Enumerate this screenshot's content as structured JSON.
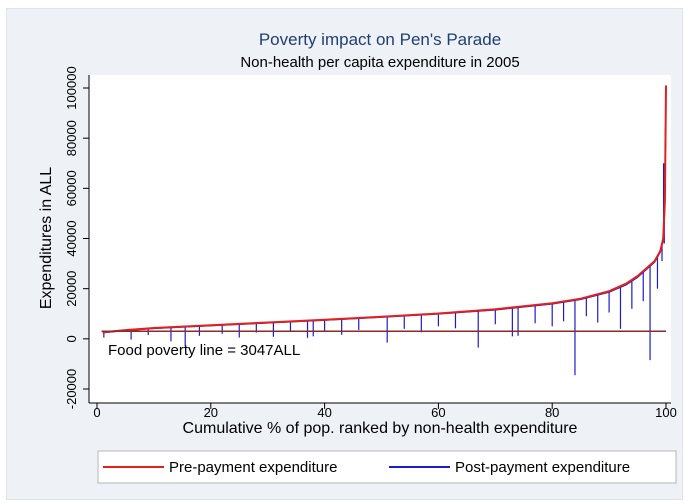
{
  "chart_data": {
    "type": "line",
    "title": "Poverty impact on Pen's Parade",
    "subtitle": "Non-health per capita expenditure in 2005",
    "xlabel": "Cumulative % of pop. ranked by non-health expenditure",
    "ylabel": "Expenditures in ALL",
    "xlim": [
      0,
      100
    ],
    "ylim": [
      -20000,
      100000
    ],
    "xticks": [
      0,
      20,
      40,
      60,
      80,
      100
    ],
    "yticks": [
      -20000,
      0,
      20000,
      40000,
      60000,
      80000,
      100000
    ],
    "xtick_labels": [
      "0",
      "20",
      "40",
      "60",
      "80",
      "100"
    ],
    "ytick_labels": [
      "-20000",
      "0",
      "20000",
      "40000",
      "60000",
      "80000",
      "100000"
    ],
    "grid": false,
    "legend_position": "bottom",
    "colors": {
      "pre_payment": "#e3201b",
      "post_payment": "#1c1ccc",
      "poverty_line": "#8b2a2a",
      "title": "#1f3f74"
    },
    "reference_line": {
      "y": 3047,
      "label": "Food poverty line = 3047ALL"
    },
    "series": [
      {
        "name": "Pre-payment expenditure",
        "x": [
          1,
          5,
          10,
          20,
          30,
          40,
          50,
          60,
          70,
          80,
          85,
          90,
          93,
          95,
          97,
          98,
          99,
          99.5,
          99.8,
          100
        ],
        "values": [
          2600,
          3500,
          4300,
          5400,
          6500,
          7600,
          8800,
          10100,
          11800,
          14200,
          16000,
          19000,
          22000,
          25000,
          29000,
          31000,
          35000,
          40000,
          55000,
          101000
        ]
      },
      {
        "name": "Post-payment expenditure",
        "x": [
          1,
          5,
          10,
          20,
          30,
          40,
          50,
          60,
          70,
          80,
          85,
          90,
          93,
          95,
          97,
          98,
          99,
          99.5,
          99.8,
          100
        ],
        "values": [
          2400,
          3300,
          4100,
          5200,
          6300,
          7400,
          8600,
          9900,
          11500,
          13900,
          15700,
          18600,
          21500,
          24500,
          28500,
          30500,
          34500,
          39000,
          54000,
          100000
        ],
        "dips": [
          {
            "x": 1.2,
            "y": 500
          },
          {
            "x": 6,
            "y": -300
          },
          {
            "x": 9,
            "y": 1500
          },
          {
            "x": 13,
            "y": -1000
          },
          {
            "x": 15.5,
            "y": -3000
          },
          {
            "x": 18,
            "y": 1200
          },
          {
            "x": 22,
            "y": 2000
          },
          {
            "x": 25,
            "y": 500
          },
          {
            "x": 28,
            "y": 2500
          },
          {
            "x": 31,
            "y": 800
          },
          {
            "x": 34,
            "y": 2800
          },
          {
            "x": 37,
            "y": 400
          },
          {
            "x": 38,
            "y": 1000
          },
          {
            "x": 40,
            "y": 3200
          },
          {
            "x": 43,
            "y": 1600
          },
          {
            "x": 46,
            "y": 3500
          },
          {
            "x": 51,
            "y": -1500
          },
          {
            "x": 54,
            "y": 4000
          },
          {
            "x": 57,
            "y": 2600
          },
          {
            "x": 60,
            "y": 5000
          },
          {
            "x": 63,
            "y": 4200
          },
          {
            "x": 67,
            "y": -3500
          },
          {
            "x": 70,
            "y": 5800
          },
          {
            "x": 73,
            "y": 1000
          },
          {
            "x": 74,
            "y": 1200
          },
          {
            "x": 77,
            "y": 6200
          },
          {
            "x": 80,
            "y": 5000
          },
          {
            "x": 82,
            "y": 7000
          },
          {
            "x": 84,
            "y": -14500
          },
          {
            "x": 86,
            "y": 9000
          },
          {
            "x": 88,
            "y": 6500
          },
          {
            "x": 90,
            "y": 10500
          },
          {
            "x": 92,
            "y": 4000
          },
          {
            "x": 94,
            "y": 12000
          },
          {
            "x": 96,
            "y": 15000
          },
          {
            "x": 97.2,
            "y": -8500
          },
          {
            "x": 98.5,
            "y": 20000
          },
          {
            "x": 99.3,
            "y": 31000
          },
          {
            "x": 99.7,
            "y": 38000
          }
        ],
        "spikes": [
          {
            "x": 99.6,
            "y": 70000
          },
          {
            "x": 99.7,
            "y": 61000
          },
          {
            "x": 99.9,
            "y": 84000
          },
          {
            "x": 100,
            "y": 101000
          }
        ]
      }
    ]
  }
}
